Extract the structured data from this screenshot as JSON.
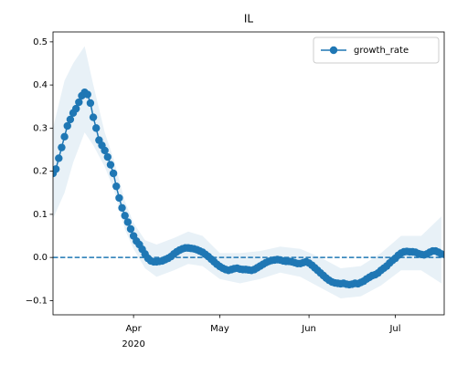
{
  "chart_data": {
    "type": "line",
    "title": "IL",
    "x": [
      "2020-03-04",
      "2020-03-05",
      "2020-03-06",
      "2020-03-07",
      "2020-03-08",
      "2020-03-09",
      "2020-03-10",
      "2020-03-11",
      "2020-03-12",
      "2020-03-13",
      "2020-03-14",
      "2020-03-15",
      "2020-03-16",
      "2020-03-17",
      "2020-03-18",
      "2020-03-19",
      "2020-03-20",
      "2020-03-21",
      "2020-03-22",
      "2020-03-23",
      "2020-03-24",
      "2020-03-25",
      "2020-03-26",
      "2020-03-27",
      "2020-03-28",
      "2020-03-29",
      "2020-03-30",
      "2020-03-31",
      "2020-04-01",
      "2020-04-02",
      "2020-04-03",
      "2020-04-04",
      "2020-04-05",
      "2020-04-06",
      "2020-04-07",
      "2020-04-08",
      "2020-04-09",
      "2020-04-10",
      "2020-04-11",
      "2020-04-12",
      "2020-04-13",
      "2020-04-14",
      "2020-04-15",
      "2020-04-16",
      "2020-04-17",
      "2020-04-18",
      "2020-04-19",
      "2020-04-20",
      "2020-04-21",
      "2020-04-22",
      "2020-04-23",
      "2020-04-24",
      "2020-04-25",
      "2020-04-26",
      "2020-04-27",
      "2020-04-28",
      "2020-04-29",
      "2020-04-30",
      "2020-05-01",
      "2020-05-02",
      "2020-05-03",
      "2020-05-04",
      "2020-05-05",
      "2020-05-06",
      "2020-05-07",
      "2020-05-08",
      "2020-05-09",
      "2020-05-10",
      "2020-05-11",
      "2020-05-12",
      "2020-05-13",
      "2020-05-14",
      "2020-05-15",
      "2020-05-16",
      "2020-05-17",
      "2020-05-18",
      "2020-05-19",
      "2020-05-20",
      "2020-05-21",
      "2020-05-22",
      "2020-05-23",
      "2020-05-24",
      "2020-05-25",
      "2020-05-26",
      "2020-05-27",
      "2020-05-28",
      "2020-05-29",
      "2020-05-30",
      "2020-05-31",
      "2020-06-01",
      "2020-06-02",
      "2020-06-03",
      "2020-06-04",
      "2020-06-05",
      "2020-06-06",
      "2020-06-07",
      "2020-06-08",
      "2020-06-09",
      "2020-06-10",
      "2020-06-11",
      "2020-06-12",
      "2020-06-13",
      "2020-06-14",
      "2020-06-15",
      "2020-06-16",
      "2020-06-17",
      "2020-06-18",
      "2020-06-19",
      "2020-06-20",
      "2020-06-21",
      "2020-06-22",
      "2020-06-23",
      "2020-06-24",
      "2020-06-25",
      "2020-06-26",
      "2020-06-27",
      "2020-06-28",
      "2020-06-29",
      "2020-06-30",
      "2020-07-01",
      "2020-07-02",
      "2020-07-03",
      "2020-07-04",
      "2020-07-05",
      "2020-07-06",
      "2020-07-07",
      "2020-07-08",
      "2020-07-09",
      "2020-07-10",
      "2020-07-11",
      "2020-07-12",
      "2020-07-13",
      "2020-07-14",
      "2020-07-15",
      "2020-07-16",
      "2020-07-17"
    ],
    "series": [
      {
        "name": "growth_rate",
        "color": "#1f77b4",
        "values": [
          0.195,
          0.205,
          0.23,
          0.255,
          0.28,
          0.305,
          0.32,
          0.335,
          0.345,
          0.36,
          0.375,
          0.383,
          0.378,
          0.358,
          0.325,
          0.3,
          0.272,
          0.26,
          0.248,
          0.233,
          0.215,
          0.195,
          0.165,
          0.138,
          0.115,
          0.097,
          0.082,
          0.066,
          0.05,
          0.038,
          0.03,
          0.019,
          0.008,
          -0.002,
          -0.008,
          -0.01,
          -0.01,
          -0.009,
          -0.008,
          -0.005,
          -0.002,
          0.002,
          0.008,
          0.013,
          0.017,
          0.02,
          0.022,
          0.022,
          0.021,
          0.02,
          0.018,
          0.015,
          0.012,
          0.007,
          0.002,
          -0.004,
          -0.01,
          -0.016,
          -0.021,
          -0.025,
          -0.028,
          -0.03,
          -0.028,
          -0.026,
          -0.025,
          -0.027,
          -0.028,
          -0.028,
          -0.029,
          -0.03,
          -0.028,
          -0.024,
          -0.02,
          -0.016,
          -0.012,
          -0.009,
          -0.007,
          -0.006,
          -0.005,
          -0.006,
          -0.008,
          -0.009,
          -0.009,
          -0.01,
          -0.012,
          -0.014,
          -0.014,
          -0.012,
          -0.01,
          -0.013,
          -0.018,
          -0.024,
          -0.03,
          -0.036,
          -0.042,
          -0.048,
          -0.053,
          -0.057,
          -0.059,
          -0.06,
          -0.061,
          -0.06,
          -0.062,
          -0.063,
          -0.062,
          -0.06,
          -0.061,
          -0.058,
          -0.055,
          -0.05,
          -0.046,
          -0.042,
          -0.04,
          -0.036,
          -0.03,
          -0.025,
          -0.02,
          -0.013,
          -0.007,
          -0.002,
          0.005,
          0.01,
          0.013,
          0.014,
          0.013,
          0.013,
          0.012,
          0.009,
          0.007,
          0.006,
          0.008,
          0.012,
          0.015,
          0.015,
          0.012,
          0.008
        ]
      }
    ],
    "band": {
      "color": "#1f77b4",
      "x": [
        "2020-03-04",
        "2020-03-08",
        "2020-03-11",
        "2020-03-15",
        "2020-03-18",
        "2020-03-22",
        "2020-03-25",
        "2020-03-29",
        "2020-04-01",
        "2020-04-05",
        "2020-04-09",
        "2020-04-15",
        "2020-04-20",
        "2020-04-25",
        "2020-05-01",
        "2020-05-08",
        "2020-05-15",
        "2020-05-22",
        "2020-05-29",
        "2020-06-05",
        "2020-06-12",
        "2020-06-19",
        "2020-06-26",
        "2020-07-03",
        "2020-07-10",
        "2020-07-17"
      ],
      "lower": [
        0.09,
        0.15,
        0.22,
        0.29,
        0.26,
        0.21,
        0.16,
        0.065,
        0.02,
        -0.025,
        -0.045,
        -0.03,
        -0.015,
        -0.02,
        -0.05,
        -0.06,
        -0.05,
        -0.035,
        -0.045,
        -0.07,
        -0.095,
        -0.09,
        -0.065,
        -0.03,
        -0.03,
        -0.06
      ],
      "upper": [
        0.3,
        0.41,
        0.45,
        0.49,
        0.4,
        0.29,
        0.23,
        0.13,
        0.08,
        0.04,
        0.03,
        0.045,
        0.06,
        0.05,
        0.01,
        0.01,
        0.015,
        0.025,
        0.02,
        0.0,
        -0.025,
        -0.02,
        0.01,
        0.05,
        0.05,
        0.095
      ]
    },
    "hline": 0,
    "xlim": [
      "2020-03-04",
      "2020-07-18"
    ],
    "xticks": [
      {
        "value": "2020-04-01",
        "label": "Apr",
        "sublabel": "2020"
      },
      {
        "value": "2020-05-01",
        "label": "May"
      },
      {
        "value": "2020-06-01",
        "label": "Jun"
      },
      {
        "value": "2020-07-01",
        "label": "Jul"
      }
    ],
    "ylim": [
      -0.133,
      0.523
    ],
    "yticks": [
      {
        "value": -0.1,
        "label": "−0.1"
      },
      {
        "value": 0,
        "label": "0.0"
      },
      0.1,
      0.2,
      0.3,
      0.4,
      0.5
    ],
    "legend": "upper right",
    "grid": false
  }
}
